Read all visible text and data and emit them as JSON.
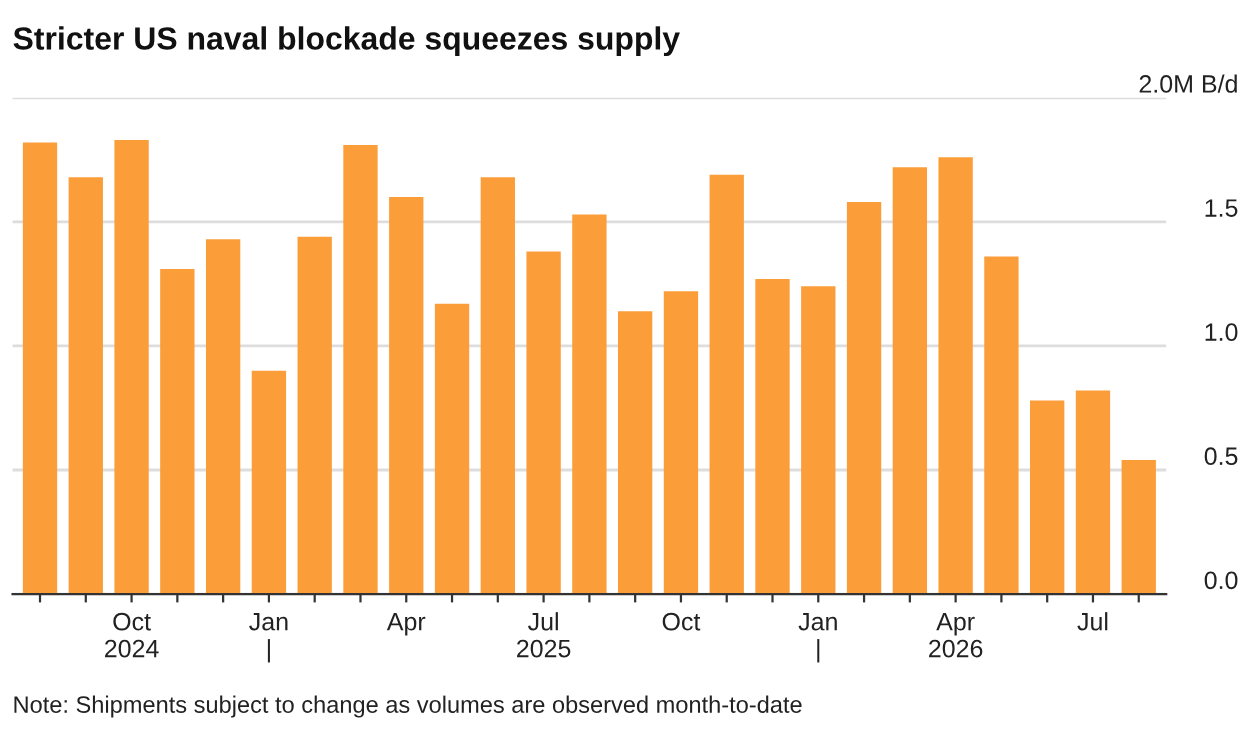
{
  "chart_data": {
    "type": "bar",
    "title": "Stricter US naval blockade squeezes supply",
    "categories": [
      null,
      null,
      "Oct\n2024",
      null,
      null,
      "Jan\n|",
      null,
      null,
      "Apr",
      null,
      null,
      "Jul\n2025",
      null,
      null,
      "Oct",
      null,
      null,
      "Jan\n|",
      null,
      null,
      "Apr\n2026",
      null,
      null,
      "Jul",
      null
    ],
    "values": [
      1.82,
      1.68,
      1.83,
      1.31,
      1.43,
      0.9,
      1.44,
      1.81,
      1.6,
      1.17,
      1.68,
      1.38,
      1.53,
      1.14,
      1.22,
      1.69,
      1.27,
      1.24,
      1.58,
      1.72,
      1.76,
      1.36,
      0.78,
      0.82,
      0.54
    ],
    "color": "#fb9e3a",
    "ylim": [
      0,
      2.0
    ],
    "yticks": [
      {
        "value": 0,
        "label": "0.0"
      },
      {
        "value": 0.5,
        "label": "0.5"
      },
      {
        "value": 1.0,
        "label": "1.0"
      },
      {
        "value": 1.5,
        "label": "1.5"
      },
      {
        "value": 2.0,
        "label": "2.0M B/d"
      }
    ],
    "grid": "y",
    "annotations": [
      "Note: Shipments subject to change as volumes are observed month-to-date"
    ]
  }
}
